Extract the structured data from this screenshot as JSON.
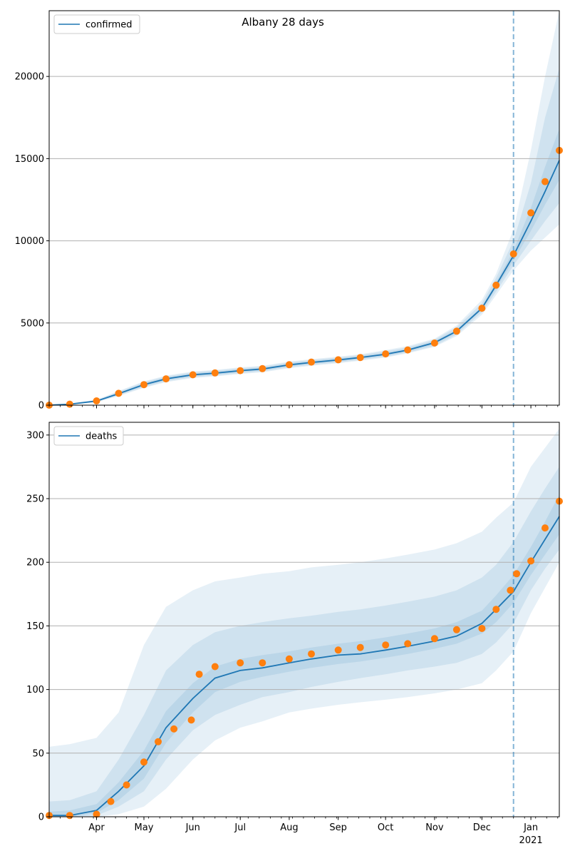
{
  "figure": {
    "title": "Albany 28 days"
  },
  "colors": {
    "model_line": "#1f77b4",
    "observed_points": "#ff7f0e",
    "band": "#1f77b4",
    "forecast_line": "#1f77b4",
    "grid": "#b0b0b0"
  },
  "x_axis": {
    "month_ticks": [
      {
        "label": "Apr",
        "date": "2020-04-01"
      },
      {
        "label": "May",
        "date": "2020-05-01"
      },
      {
        "label": "Jun",
        "date": "2020-06-01"
      },
      {
        "label": "Jul",
        "date": "2020-07-01"
      },
      {
        "label": "Aug",
        "date": "2020-08-01"
      },
      {
        "label": "Sep",
        "date": "2020-09-01"
      },
      {
        "label": "Oct",
        "date": "2020-10-01"
      },
      {
        "label": "Nov",
        "date": "2020-11-01"
      },
      {
        "label": "Dec",
        "date": "2020-12-01"
      },
      {
        "label": "Jan",
        "date": "2021-01-01"
      }
    ],
    "year_label": "2021",
    "range": [
      "2020-03-02",
      "2021-01-19"
    ]
  },
  "chart_data": [
    {
      "type": "line",
      "panel": "top",
      "legend": {
        "label": "confirmed",
        "position": "upper-left"
      },
      "ylim": [
        0,
        24000
      ],
      "yticks": [
        0,
        5000,
        10000,
        15000,
        20000
      ],
      "grid": "y",
      "forecast_start": "2020-12-21",
      "model": {
        "x": [
          "2020-03-02",
          "2020-03-15",
          "2020-04-01",
          "2020-04-15",
          "2020-05-01",
          "2020-05-15",
          "2020-06-01",
          "2020-06-15",
          "2020-07-01",
          "2020-07-15",
          "2020-08-01",
          "2020-08-15",
          "2020-09-01",
          "2020-09-15",
          "2020-10-01",
          "2020-10-15",
          "2020-11-01",
          "2020-11-15",
          "2020-12-01",
          "2020-12-10",
          "2020-12-21",
          "2021-01-01",
          "2021-01-10",
          "2021-01-19"
        ],
        "y": [
          0,
          60,
          250,
          700,
          1250,
          1600,
          1850,
          1950,
          2100,
          2200,
          2450,
          2600,
          2750,
          2900,
          3100,
          3350,
          3800,
          4500,
          5900,
          7300,
          9100,
          11200,
          13000,
          14900
        ]
      },
      "observed": {
        "x": [
          "2020-03-02",
          "2020-03-15",
          "2020-04-01",
          "2020-04-15",
          "2020-05-01",
          "2020-05-15",
          "2020-06-01",
          "2020-06-15",
          "2020-07-01",
          "2020-07-15",
          "2020-08-01",
          "2020-08-15",
          "2020-09-01",
          "2020-09-15",
          "2020-10-01",
          "2020-10-15",
          "2020-11-01",
          "2020-11-15",
          "2020-12-01",
          "2020-12-10",
          "2020-12-21",
          "2021-01-01",
          "2021-01-10",
          "2021-01-19"
        ],
        "y": [
          0,
          60,
          260,
          720,
          1250,
          1600,
          1850,
          1960,
          2100,
          2220,
          2460,
          2620,
          2760,
          2900,
          3120,
          3360,
          3780,
          4500,
          5900,
          7300,
          9200,
          11700,
          13600,
          15500
        ]
      },
      "bands": [
        {
          "lower": [
            0,
            30,
            180,
            550,
            1050,
            1400,
            1650,
            1750,
            1900,
            2000,
            2250,
            2400,
            2550,
            2700,
            2900,
            3150,
            3550,
            4200,
            5500,
            6700,
            8200,
            9400,
            10200,
            11000
          ],
          "upper": [
            50,
            100,
            330,
            870,
            1450,
            1800,
            2050,
            2150,
            2300,
            2400,
            2650,
            2800,
            2950,
            3100,
            3350,
            3600,
            4050,
            4850,
            6400,
            8000,
            10700,
            15500,
            20000,
            24000
          ]
        },
        {
          "lower": [
            0,
            40,
            200,
            600,
            1100,
            1450,
            1700,
            1800,
            1950,
            2050,
            2300,
            2450,
            2600,
            2750,
            2950,
            3200,
            3600,
            4300,
            5650,
            6900,
            8500,
            10000,
            11200,
            12300
          ],
          "upper": [
            40,
            90,
            300,
            820,
            1400,
            1750,
            2000,
            2100,
            2250,
            2350,
            2600,
            2750,
            2900,
            3050,
            3280,
            3520,
            3980,
            4750,
            6200,
            7750,
            10000,
            13500,
            17500,
            20500
          ]
        },
        {
          "lower": [
            0,
            50,
            225,
            650,
            1170,
            1520,
            1770,
            1870,
            2020,
            2120,
            2370,
            2520,
            2670,
            2820,
            3020,
            3270,
            3700,
            4400,
            5800,
            7100,
            8800,
            10600,
            12200,
            13700
          ],
          "upper": [
            20,
            75,
            275,
            750,
            1330,
            1680,
            1930,
            2030,
            2180,
            2280,
            2530,
            2680,
            2830,
            2980,
            3180,
            3430,
            3900,
            4600,
            6000,
            7500,
            9400,
            12000,
            14500,
            16800
          ]
        }
      ]
    },
    {
      "type": "line",
      "panel": "bottom",
      "legend": {
        "label": "deaths",
        "position": "upper-left"
      },
      "ylim": [
        0,
        310
      ],
      "yticks": [
        0,
        50,
        100,
        150,
        200,
        250,
        300
      ],
      "grid": "y",
      "forecast_start": "2020-12-21",
      "model": {
        "x": [
          "2020-03-02",
          "2020-03-15",
          "2020-04-01",
          "2020-04-15",
          "2020-05-01",
          "2020-05-15",
          "2020-06-01",
          "2020-06-15",
          "2020-07-01",
          "2020-07-15",
          "2020-08-01",
          "2020-08-15",
          "2020-09-01",
          "2020-09-15",
          "2020-10-01",
          "2020-10-15",
          "2020-11-01",
          "2020-11-15",
          "2020-12-01",
          "2020-12-10",
          "2020-12-21",
          "2021-01-01",
          "2021-01-10",
          "2021-01-19"
        ],
        "y": [
          1,
          1,
          5,
          20,
          40,
          70,
          93,
          109,
          115,
          117,
          121,
          124,
          127,
          128,
          131,
          134,
          138,
          142,
          152,
          163,
          177,
          200,
          218,
          236
        ]
      },
      "observed": {
        "x": [
          "2020-03-02",
          "2020-03-15",
          "2020-04-01",
          "2020-04-10",
          "2020-04-20",
          "2020-05-01",
          "2020-05-10",
          "2020-05-20",
          "2020-05-31",
          "2020-06-05",
          "2020-06-15",
          "2020-07-01",
          "2020-07-15",
          "2020-08-01",
          "2020-08-15",
          "2020-09-01",
          "2020-09-15",
          "2020-10-01",
          "2020-10-15",
          "2020-11-01",
          "2020-11-15",
          "2020-12-01",
          "2020-12-10",
          "2020-12-19",
          "2020-12-23",
          "2021-01-01",
          "2021-01-10",
          "2021-01-19"
        ],
        "y": [
          1,
          1,
          2,
          12,
          25,
          43,
          59,
          69,
          76,
          112,
          118,
          121,
          121,
          124,
          128,
          131,
          133,
          135,
          136,
          140,
          147,
          148,
          163,
          178,
          191,
          201,
          227,
          248
        ]
      },
      "bands": [
        {
          "lower": [
            0,
            0,
            0,
            2,
            8,
            22,
            45,
            60,
            70,
            75,
            82,
            85,
            88,
            90,
            92,
            94,
            97,
            100,
            105,
            115,
            130,
            160,
            180,
            200
          ],
          "upper": [
            55,
            57,
            62,
            82,
            135,
            165,
            178,
            185,
            188,
            191,
            193,
            196,
            198,
            200,
            203,
            206,
            210,
            215,
            224,
            235,
            247,
            275,
            290,
            305
          ]
        },
        {
          "lower": [
            0,
            0,
            1,
            8,
            20,
            45,
            68,
            80,
            88,
            94,
            98,
            102,
            106,
            109,
            112,
            115,
            118,
            121,
            128,
            137,
            152,
            178,
            195,
            210
          ],
          "upper": [
            12,
            13,
            20,
            45,
            80,
            115,
            135,
            145,
            150,
            153,
            156,
            158,
            161,
            163,
            166,
            169,
            173,
            178,
            188,
            198,
            216,
            240,
            258,
            275
          ]
        },
        {
          "lower": [
            0,
            0,
            3,
            13,
            30,
            58,
            82,
            98,
            106,
            110,
            114,
            117,
            120,
            122,
            125,
            128,
            132,
            136,
            144,
            153,
            168,
            190,
            206,
            222
          ],
          "upper": [
            4,
            5,
            10,
            27,
            52,
            83,
            105,
            118,
            124,
            127,
            130,
            133,
            136,
            138,
            141,
            144,
            148,
            153,
            162,
            174,
            190,
            212,
            232,
            253
          ]
        }
      ]
    }
  ]
}
